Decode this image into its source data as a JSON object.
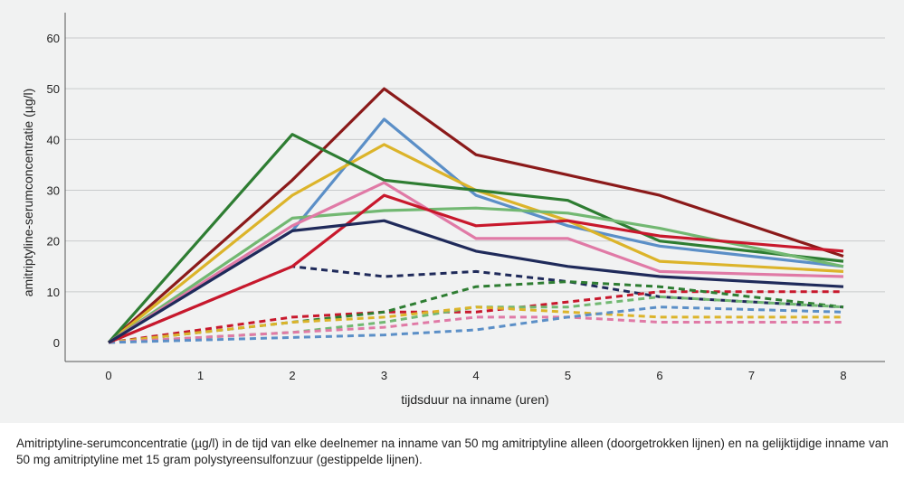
{
  "caption": "Amitriptyline-serumconcentratie (µg/l) in de tijd van elke deelnemer na inname van 50 mg amitriptyline alleen (doorgetrokken lijnen) en na gelijktijdi­ge inname van 50 mg amitriptyline met 15 gram polystyreensulfonzuur (gestippelde lijnen).",
  "chart_data": {
    "type": "line",
    "xlabel": "tijdsduur na inname (uren)",
    "ylabel": "amitriptyline-serumconcentratie (µg/l)",
    "xlim": [
      0,
      8
    ],
    "ylim": [
      0,
      60
    ],
    "xticks": [
      0,
      1,
      2,
      3,
      4,
      5,
      6,
      7,
      8
    ],
    "yticks": [
      0,
      10,
      20,
      30,
      40,
      50,
      60
    ],
    "grid": "horizontal",
    "x": [
      0,
      2,
      3,
      4,
      5,
      6,
      8
    ],
    "series": [
      {
        "color": "#8b1a1a",
        "style": "solid",
        "values": [
          0,
          32,
          50,
          37,
          33,
          29,
          17
        ]
      },
      {
        "color": "#5b8fc7",
        "style": "solid",
        "values": [
          0,
          22,
          44,
          29,
          23,
          19,
          15
        ]
      },
      {
        "color": "#dcb42a",
        "style": "solid",
        "values": [
          0,
          29,
          39,
          30,
          24,
          16,
          14
        ]
      },
      {
        "color": "#2e7d32",
        "style": "solid",
        "values": [
          0,
          41,
          32,
          30,
          28,
          20,
          16
        ]
      },
      {
        "color": "#72b872",
        "style": "solid",
        "values": [
          0,
          24.5,
          26,
          26.5,
          25.5,
          22.5,
          15
        ]
      },
      {
        "color": "#e07aa6",
        "style": "solid",
        "values": [
          0,
          23,
          31.5,
          20.5,
          20.5,
          14,
          13
        ]
      },
      {
        "color": "#c8182c",
        "style": "solid",
        "values": [
          0,
          15,
          29,
          23,
          24,
          21,
          18
        ]
      },
      {
        "color": "#1f2a5a",
        "style": "solid",
        "values": [
          0,
          22,
          24,
          18,
          15,
          13,
          11
        ]
      },
      {
        "color": "#1f2a5a",
        "style": "dashed",
        "values": [
          0,
          15,
          13,
          14,
          12,
          9,
          7
        ]
      },
      {
        "color": "#c8182c",
        "style": "dashed",
        "values": [
          0,
          5,
          6,
          6,
          8,
          10,
          10
        ]
      },
      {
        "color": "#2e7d32",
        "style": "dashed",
        "values": [
          0,
          4,
          6,
          11,
          12,
          11,
          7
        ]
      },
      {
        "color": "#72b872",
        "style": "dashed",
        "values": [
          0,
          2,
          4,
          7,
          7,
          9,
          7
        ]
      },
      {
        "color": "#dcb42a",
        "style": "dashed",
        "values": [
          0,
          4,
          5,
          7,
          6,
          5,
          5
        ]
      },
      {
        "color": "#e07aa6",
        "style": "dashed",
        "values": [
          0,
          2,
          3,
          5,
          5,
          4,
          4
        ]
      },
      {
        "color": "#5b8fc7",
        "style": "dashed",
        "values": [
          0,
          1,
          1.5,
          2.5,
          5,
          7,
          6
        ]
      }
    ]
  }
}
